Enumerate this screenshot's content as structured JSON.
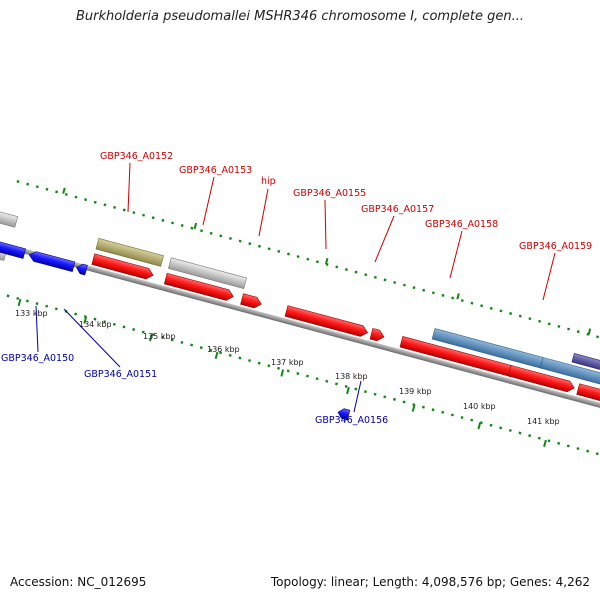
{
  "title": "Burkholderia pseudomallei MSHR346 chromosome I, complete gen...",
  "footer": {
    "accession": "Accession: NC_012695",
    "summary": "Topology: linear; Length: 4,098,576 bp; Genes: 4,262"
  },
  "colors": {
    "forward_gene": "#ff1a1a",
    "reverse_gene": "#1a1aff",
    "forward_label": "#cc0000",
    "reverse_label": "#0000aa",
    "tick": "#118811",
    "backbone": "#8a8a8a"
  },
  "scale_ticks": [
    "133 kbp",
    "134 kbp",
    "135 kbp",
    "136 kbp",
    "137 kbp",
    "138 kbp",
    "139 kbp",
    "140 kbp",
    "141 kbp"
  ],
  "forward_genes": [
    "GBP346_A0152",
    "GBP346_A0153",
    "hip",
    "GBP346_A0155",
    "GBP346_A0157",
    "GBP346_A0158",
    "GBP346_A0159"
  ],
  "reverse_genes": [
    "GBP346_A0150",
    "GBP346_A0151",
    "GBP346_A0156"
  ]
}
